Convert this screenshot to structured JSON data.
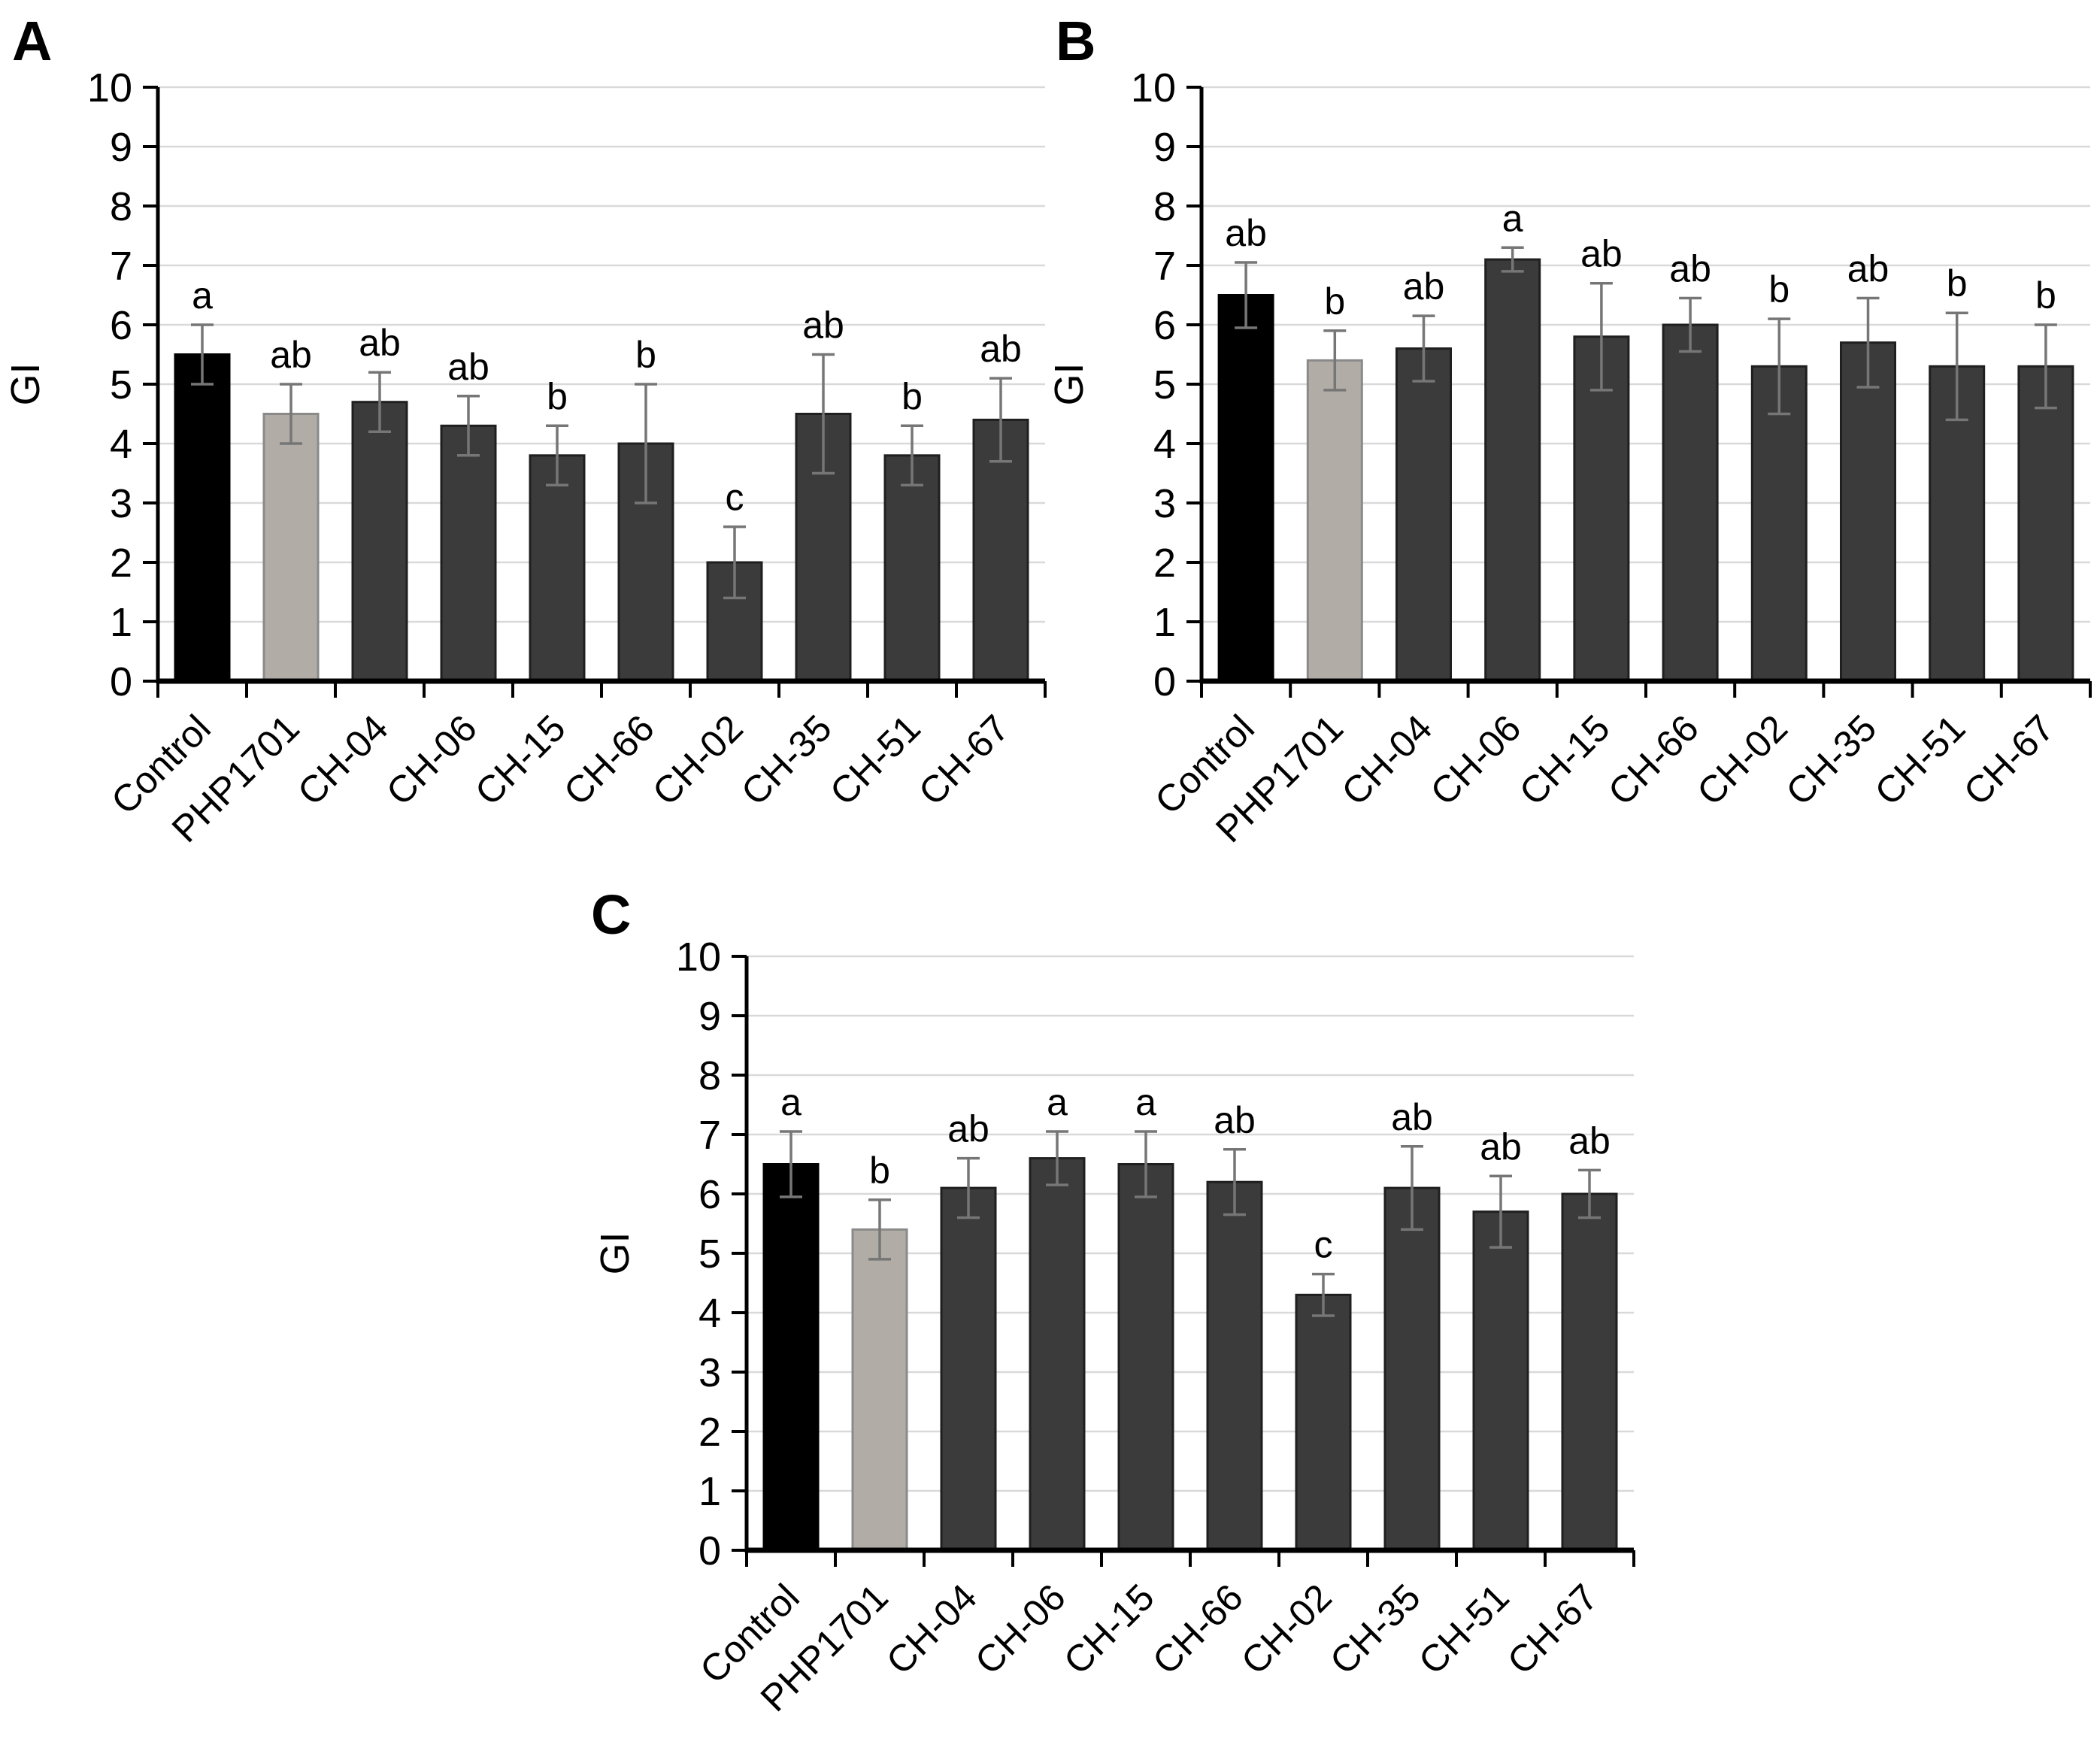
{
  "figure": {
    "description": "Three-panel bar figure (A, B, C) of germination index (GI) for chitosan treatments with standard-deviation error bars and significance letters",
    "y_axis_title": "GI",
    "colors": {
      "background": "#ffffff",
      "control_fill": "#000000",
      "control_stroke": "#000000",
      "reference_fill": "#b1ada6",
      "reference_stroke": "#8a8a8a",
      "treatment_fill": "#3b3b3b",
      "treatment_stroke": "#1f1f1f",
      "error_bar": "#767676",
      "gridline": "#d9d9d9",
      "axis": "#000000",
      "text": "#000000"
    }
  },
  "chart_data": [
    {
      "type": "bar",
      "panel_label": "A",
      "title": "",
      "xlabel": "",
      "ylabel": "GI",
      "ylim": [
        0,
        10
      ],
      "ytick_interval": 1,
      "grid": true,
      "legend": false,
      "categories": [
        "Control",
        "PHP1701",
        "CH-04",
        "CH-06",
        "CH-15",
        "CH-66",
        "CH-02",
        "CH-35",
        "CH-51",
        "CH-67"
      ],
      "values": [
        5.5,
        4.5,
        4.7,
        4.3,
        3.8,
        4.0,
        2.0,
        4.5,
        3.8,
        4.4
      ],
      "error_bars": [
        0.5,
        0.5,
        0.5,
        0.5,
        0.5,
        1.0,
        0.6,
        1.0,
        0.5,
        0.7
      ],
      "sig_letters": [
        "a",
        "ab",
        "ab",
        "ab",
        "b",
        "b",
        "c",
        "ab",
        "b",
        "ab"
      ],
      "bar_roles": [
        "control",
        "reference",
        "treatment",
        "treatment",
        "treatment",
        "treatment",
        "treatment",
        "treatment",
        "treatment",
        "treatment"
      ]
    },
    {
      "type": "bar",
      "panel_label": "B",
      "title": "",
      "xlabel": "",
      "ylabel": "GI",
      "ylim": [
        0,
        10
      ],
      "ytick_interval": 1,
      "grid": true,
      "legend": false,
      "categories": [
        "Control",
        "PHP1701",
        "CH-04",
        "CH-06",
        "CH-15",
        "CH-66",
        "CH-02",
        "CH-35",
        "CH-51",
        "CH-67"
      ],
      "values": [
        6.5,
        5.4,
        5.6,
        7.1,
        5.8,
        6.0,
        5.3,
        5.7,
        5.3,
        5.3
      ],
      "error_bars": [
        0.55,
        0.5,
        0.55,
        0.2,
        0.9,
        0.45,
        0.8,
        0.75,
        0.9,
        0.7
      ],
      "sig_letters": [
        "ab",
        "b",
        "ab",
        "a",
        "ab",
        "ab",
        "b",
        "ab",
        "b",
        "b"
      ],
      "bar_roles": [
        "control",
        "reference",
        "treatment",
        "treatment",
        "treatment",
        "treatment",
        "treatment",
        "treatment",
        "treatment",
        "treatment"
      ]
    },
    {
      "type": "bar",
      "panel_label": "C",
      "title": "",
      "xlabel": "",
      "ylabel": "GI",
      "ylim": [
        0,
        10
      ],
      "ytick_interval": 1,
      "grid": true,
      "legend": false,
      "categories": [
        "Control",
        "PHP1701",
        "CH-04",
        "CH-06",
        "CH-15",
        "CH-66",
        "CH-02",
        "CH-35",
        "CH-51",
        "CH-67"
      ],
      "values": [
        6.5,
        5.4,
        6.1,
        6.6,
        6.5,
        6.2,
        4.3,
        6.1,
        5.7,
        6.0
      ],
      "error_bars": [
        0.55,
        0.5,
        0.5,
        0.45,
        0.55,
        0.55,
        0.35,
        0.7,
        0.6,
        0.4
      ],
      "sig_letters": [
        "a",
        "b",
        "ab",
        "a",
        "a",
        "ab",
        "c",
        "ab",
        "ab",
        "ab"
      ],
      "bar_roles": [
        "control",
        "reference",
        "treatment",
        "treatment",
        "treatment",
        "treatment",
        "treatment",
        "treatment",
        "treatment",
        "treatment"
      ]
    }
  ]
}
